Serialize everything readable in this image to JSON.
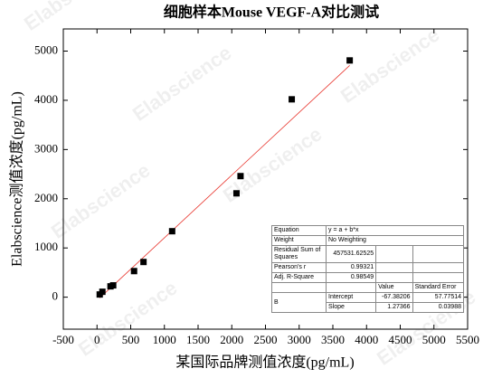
{
  "chart_data": {
    "type": "scatter",
    "title": "细胞样本Mouse VEGF-A对比测试",
    "x_label": "某国际品牌测值浓度(pg/mL)",
    "y_label": "Elabscience测值浓度(pg/mL)",
    "x": [
      40,
      80,
      200,
      240,
      550,
      690,
      1115,
      2070,
      2130,
      2890,
      3750
    ],
    "values": [
      55,
      110,
      220,
      240,
      530,
      715,
      1340,
      2110,
      2460,
      4020,
      4810
    ],
    "color": "#000000",
    "fit_color": "#e8342c",
    "xlim": [
      -500,
      5500
    ],
    "xticks": [
      -500,
      0,
      500,
      1000,
      1500,
      2000,
      2500,
      3000,
      3500,
      4000,
      4500,
      5000,
      5500
    ],
    "ylim": [
      -650,
      5450
    ],
    "yticks": [
      0,
      1000,
      2000,
      3000,
      4000,
      5000
    ]
  },
  "watermark": "Elabscience",
  "fit_table": {
    "rows": [
      [
        "Equation",
        "y = a + b*x"
      ],
      [
        "Weight",
        "No Weighting"
      ],
      [
        "Residual Sum of Squares",
        457531.62525
      ],
      [
        "Pearson's r",
        0.99321
      ],
      [
        "Adj. R-Square",
        0.98549
      ]
    ],
    "header": [
      "Value",
      "Standard Error"
    ],
    "param": "B",
    "coefficients": [
      [
        "Intercept",
        -67.38206,
        57.77514
      ],
      [
        "Slope",
        1.27366,
        0.03988
      ]
    ]
  }
}
